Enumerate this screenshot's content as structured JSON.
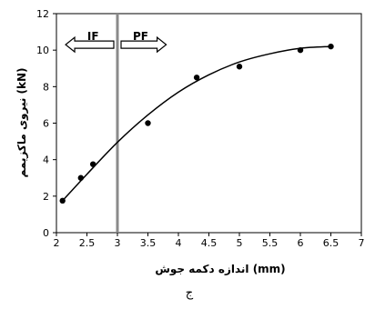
{
  "chart_data": {
    "type": "scatter",
    "xlabel": "اندازه دکمه جوش (mm)",
    "ylabel": "نیروی ماکزیمم (kN)",
    "xlim": [
      2,
      7
    ],
    "ylim": [
      0,
      12
    ],
    "x_ticks": [
      "2",
      "2.5",
      "3",
      "3.5",
      "4",
      "4.5",
      "5",
      "5.5",
      "6",
      "6.5",
      "7"
    ],
    "y_ticks": [
      "0",
      "2",
      "4",
      "6",
      "8",
      "10",
      "12"
    ],
    "grid": false,
    "series": [
      {
        "points": [
          {
            "x": 2.1,
            "y": 1.75
          },
          {
            "x": 2.4,
            "y": 3.0
          },
          {
            "x": 2.6,
            "y": 3.75
          },
          {
            "x": 3.5,
            "y": 6.0
          },
          {
            "x": 4.3,
            "y": 8.5
          },
          {
            "x": 5.0,
            "y": 9.1
          },
          {
            "x": 6.0,
            "y": 10.0
          },
          {
            "x": 6.5,
            "y": 10.2
          }
        ]
      }
    ],
    "trend_line": {
      "type": "polynomial",
      "x_range": [
        2.1,
        6.5
      ],
      "points": [
        {
          "x": 2.1,
          "y": 1.75
        },
        {
          "x": 2.5,
          "y": 3.2
        },
        {
          "x": 3.0,
          "y": 4.95
        },
        {
          "x": 3.5,
          "y": 6.45
        },
        {
          "x": 4.0,
          "y": 7.7
        },
        {
          "x": 4.5,
          "y": 8.65
        },
        {
          "x": 5.0,
          "y": 9.35
        },
        {
          "x": 5.5,
          "y": 9.8
        },
        {
          "x": 6.0,
          "y": 10.1
        },
        {
          "x": 6.5,
          "y": 10.2
        }
      ]
    },
    "divider_x": 3,
    "regions": [
      {
        "label": "IF",
        "direction": "left"
      },
      {
        "label": "PF",
        "direction": "right"
      }
    ]
  },
  "caption": "ج"
}
